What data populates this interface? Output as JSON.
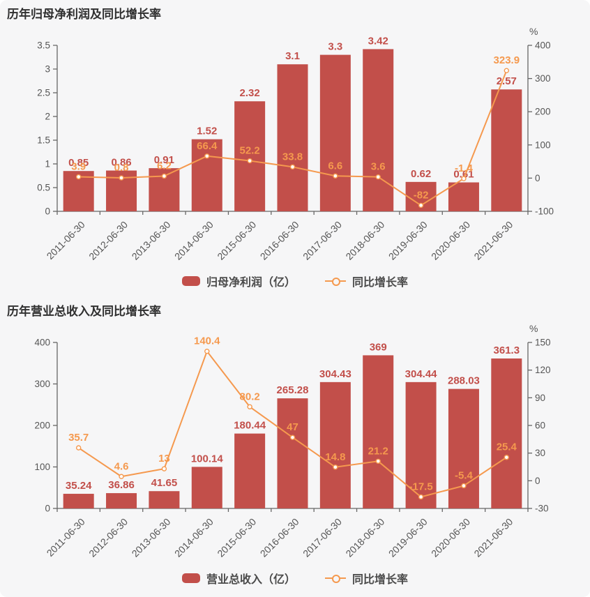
{
  "page": {
    "background_color": "#f6f6f7"
  },
  "chart_data": [
    {
      "type": "bar",
      "combo": "bar+line",
      "title": "历年归母净利润及同比增长率",
      "categories": [
        "2011-06-30",
        "2012-06-30",
        "2013-06-30",
        "2014-06-30",
        "2015-06-30",
        "2016-06-30",
        "2017-06-30",
        "2018-06-30",
        "2019-06-30",
        "2020-06-30",
        "2021-06-30"
      ],
      "series": [
        {
          "name": "归母净利润（亿）",
          "type": "bar",
          "yaxis": "left",
          "color": "#c24f4a",
          "values": [
            0.85,
            0.86,
            0.91,
            1.52,
            2.32,
            3.1,
            3.3,
            3.42,
            0.62,
            0.61,
            2.57
          ],
          "labels": [
            "0.85",
            "0.86",
            "0.91",
            "1.52",
            "2.32",
            "3.1",
            "3.3",
            "3.42",
            "0.62",
            "0.61",
            "2.57"
          ]
        },
        {
          "name": "同比增长率",
          "type": "line",
          "yaxis": "right",
          "color": "#f5994e",
          "values": [
            3.9,
            0.8,
            6.2,
            66.4,
            52.2,
            33.8,
            6.6,
            3.6,
            -82,
            -1.4,
            323.9
          ],
          "labels": [
            "3.9",
            "0.8",
            "6.2",
            "66.4",
            "52.2",
            "33.8",
            "6.6",
            "3.6",
            "-82",
            "-1.4",
            "323.9"
          ]
        }
      ],
      "left_axis": {
        "min": 0,
        "max": 3.5,
        "ticks": [
          "0",
          "0.5",
          "1",
          "1.5",
          "2",
          "2.5",
          "3",
          "3.5"
        ]
      },
      "right_axis": {
        "min": -100,
        "max": 400,
        "ticks": [
          "-100",
          "0",
          "100",
          "200",
          "300",
          "400"
        ],
        "unit": "%"
      },
      "legend_position": "bottom",
      "grid": "off",
      "axis_color": "#666666",
      "tick_text_color": "#555555"
    },
    {
      "type": "bar",
      "combo": "bar+line",
      "title": "历年营业总收入及同比增长率",
      "categories": [
        "2011-06-30",
        "2012-06-30",
        "2013-06-30",
        "2014-06-30",
        "2015-06-30",
        "2016-06-30",
        "2017-06-30",
        "2018-06-30",
        "2019-06-30",
        "2020-06-30",
        "2021-06-30"
      ],
      "series": [
        {
          "name": "营业总收入（亿）",
          "type": "bar",
          "yaxis": "left",
          "color": "#c24f4a",
          "values": [
            35.24,
            36.86,
            41.65,
            100.14,
            180.44,
            265.28,
            304.43,
            369,
            304.44,
            288.03,
            361.3
          ],
          "labels": [
            "35.24",
            "36.86",
            "41.65",
            "100.14",
            "180.44",
            "265.28",
            "304.43",
            "369",
            "304.44",
            "288.03",
            "361.3"
          ]
        },
        {
          "name": "同比增长率",
          "type": "line",
          "yaxis": "right",
          "color": "#f5994e",
          "values": [
            35.7,
            4.6,
            13,
            140.4,
            80.2,
            47,
            14.8,
            21.2,
            -17.5,
            -5.4,
            25.4
          ],
          "labels": [
            "35.7",
            "4.6",
            "13",
            "140.4",
            "80.2",
            "47",
            "14.8",
            "21.2",
            "-17.5",
            "-5.4",
            "25.4"
          ]
        }
      ],
      "left_axis": {
        "min": 0,
        "max": 400,
        "ticks": [
          "0",
          "100",
          "200",
          "300",
          "400"
        ]
      },
      "right_axis": {
        "min": -30,
        "max": 150,
        "ticks": [
          "-30",
          "0",
          "30",
          "60",
          "90",
          "120",
          "150"
        ],
        "unit": "%"
      },
      "legend_position": "bottom",
      "grid": "off",
      "axis_color": "#666666",
      "tick_text_color": "#555555"
    }
  ]
}
